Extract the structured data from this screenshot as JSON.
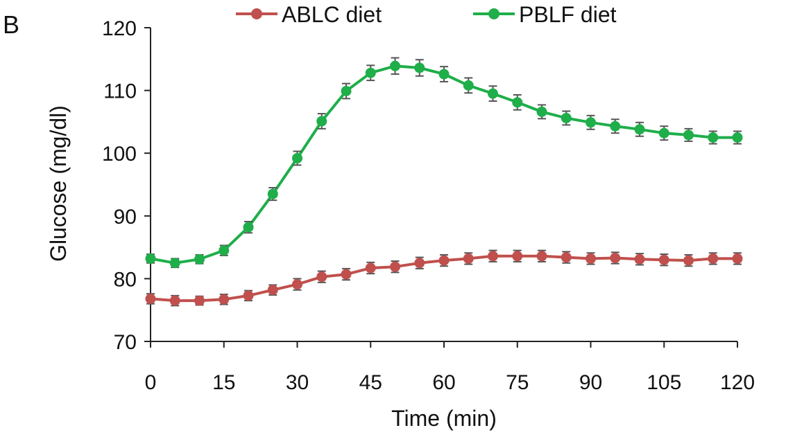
{
  "panel_label": "B",
  "chart_data": {
    "type": "line",
    "xlabel": "Time (min)",
    "ylabel": "Glucose (mg/dl)",
    "xlim": [
      0,
      120
    ],
    "ylim": [
      70,
      120
    ],
    "xticks": [
      0,
      15,
      30,
      45,
      60,
      75,
      90,
      105,
      120
    ],
    "yticks": [
      70,
      80,
      90,
      100,
      110,
      120
    ],
    "legend_position": "top",
    "x": [
      0,
      5,
      10,
      15,
      20,
      25,
      30,
      35,
      40,
      45,
      50,
      55,
      60,
      65,
      70,
      75,
      80,
      85,
      90,
      95,
      100,
      105,
      110,
      115,
      120
    ],
    "series": [
      {
        "name": "ABLC diet",
        "color": "#c0504d",
        "values": [
          76.8,
          76.5,
          76.5,
          76.7,
          77.3,
          78.2,
          79.1,
          80.3,
          80.7,
          81.7,
          81.9,
          82.5,
          82.9,
          83.2,
          83.6,
          83.6,
          83.6,
          83.4,
          83.2,
          83.3,
          83.1,
          83.0,
          82.9,
          83.2,
          83.2
        ],
        "errors": [
          0.8,
          0.8,
          0.7,
          0.8,
          0.8,
          0.8,
          0.9,
          0.9,
          0.9,
          0.9,
          0.9,
          0.9,
          0.9,
          0.9,
          0.9,
          0.9,
          0.9,
          0.9,
          0.9,
          0.9,
          0.9,
          0.9,
          0.9,
          0.9,
          0.9
        ]
      },
      {
        "name": "PBLF diet",
        "color": "#1fae4a",
        "values": [
          83.2,
          82.5,
          83.1,
          84.5,
          88.2,
          93.5,
          99.2,
          105.1,
          109.9,
          112.8,
          113.9,
          113.6,
          112.6,
          110.8,
          109.5,
          108.1,
          106.6,
          105.6,
          104.9,
          104.3,
          103.8,
          103.2,
          102.9,
          102.5,
          102.5
        ],
        "errors": [
          0.7,
          0.7,
          0.7,
          0.8,
          0.9,
          1.0,
          1.1,
          1.2,
          1.2,
          1.2,
          1.3,
          1.3,
          1.2,
          1.2,
          1.2,
          1.2,
          1.1,
          1.1,
          1.1,
          1.1,
          1.1,
          1.1,
          1.0,
          1.0,
          1.0
        ]
      }
    ]
  }
}
